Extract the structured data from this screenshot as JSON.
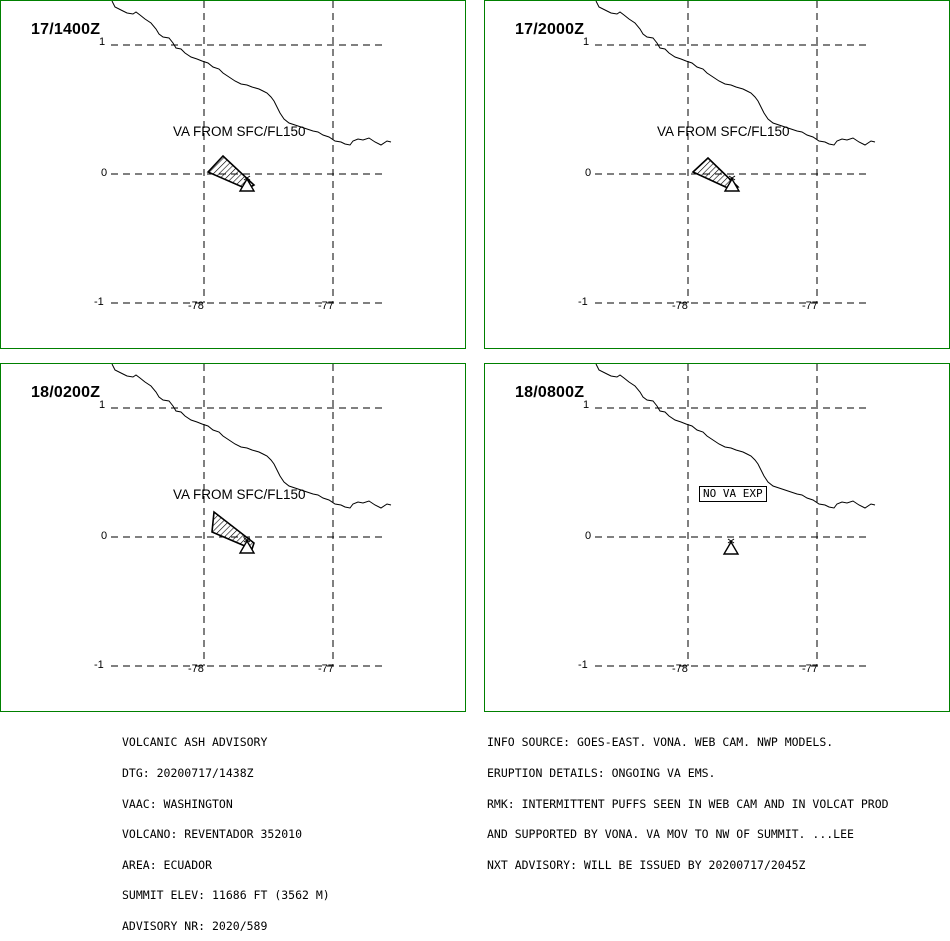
{
  "panels": [
    {
      "id": "p1",
      "time": "17/1400Z",
      "va_label": "VA FROM SFC/FL150",
      "no_va_label": "",
      "y_ticks": [
        "1",
        "0",
        "-1"
      ],
      "x_ticks": [
        "-78",
        "-77"
      ]
    },
    {
      "id": "p2",
      "time": "17/2000Z",
      "va_label": "VA FROM SFC/FL150",
      "no_va_label": "",
      "y_ticks": [
        "1",
        "0",
        "-1"
      ],
      "x_ticks": [
        "-78",
        "-77"
      ]
    },
    {
      "id": "p3",
      "time": "18/0200Z",
      "va_label": "VA FROM SFC/FL150",
      "no_va_label": "",
      "y_ticks": [
        "1",
        "0",
        "-1"
      ],
      "x_ticks": [
        "-78",
        "-77"
      ]
    },
    {
      "id": "p4",
      "time": "18/0800Z",
      "va_label": "",
      "no_va_label": "NO VA EXP",
      "y_ticks": [
        "1",
        "0",
        "-1"
      ],
      "x_ticks": [
        "-78",
        "-77"
      ]
    }
  ],
  "advisory": {
    "lines": [
      "VOLCANIC ASH ADVISORY",
      "DTG: 20200717/1438Z",
      "VAAC: WASHINGTON",
      "VOLCANO: REVENTADOR 352010",
      "AREA: ECUADOR",
      "SUMMIT ELEV: 11686 FT (3562 M)",
      "ADVISORY NR: 2020/589"
    ]
  },
  "info": {
    "lines": [
      "INFO SOURCE: GOES-EAST. VONA. WEB CAM. NWP MODELS.",
      "ERUPTION DETAILS: ONGOING VA EMS.",
      "RMK: INTERMITTENT PUFFS SEEN IN WEB CAM AND IN VOLCAT PROD",
      "AND SUPPORTED BY VONA. VA MOV TO NW OF SUMMIT. ...LEE",
      "NXT ADVISORY: WILL BE ISSUED BY 20200717/2045Z"
    ]
  },
  "colors": {
    "border": "#008000",
    "lines": "#000000",
    "background": "#ffffff"
  },
  "icons": {
    "volcano": "volcano-triangle-icon",
    "ash_area": "hatched-polygon"
  }
}
